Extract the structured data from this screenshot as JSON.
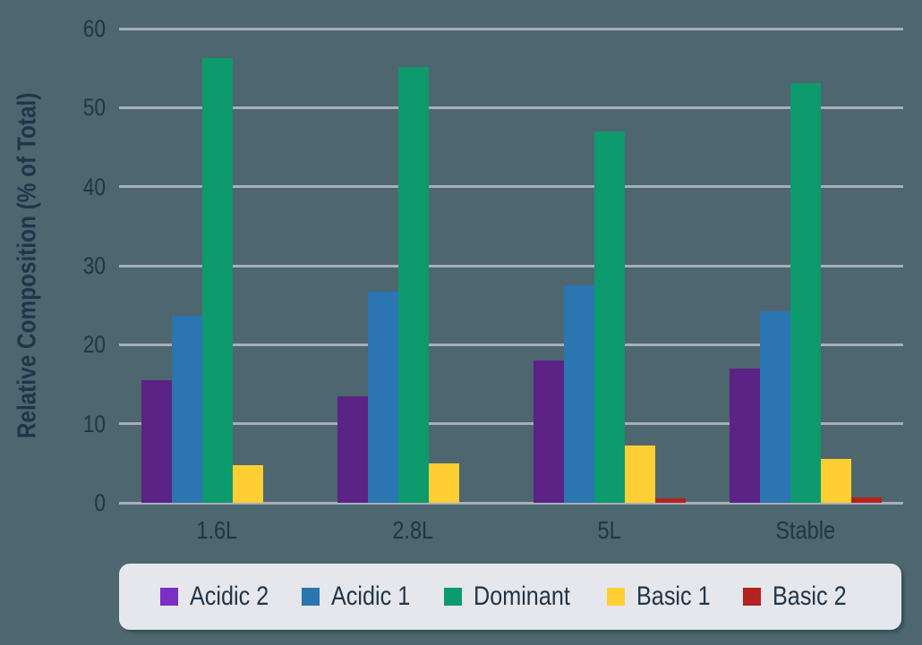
{
  "chart_data": {
    "type": "bar",
    "title": "",
    "categories": [
      "1.6L",
      "2.8L",
      "5L",
      "Stable"
    ],
    "series": [
      {
        "name": "Acidic 2",
        "color": "#5a2385",
        "legend_color": "#7b2fc4",
        "values": [
          15.5,
          13.5,
          18.0,
          17.0
        ]
      },
      {
        "name": "Acidic 1",
        "color": "#2a75b2",
        "legend_color": "#2a75b2",
        "values": [
          23.7,
          26.7,
          27.5,
          24.2
        ]
      },
      {
        "name": "Dominant",
        "color": "#0d9a6d",
        "legend_color": "#0d9a6d",
        "values": [
          56.3,
          55.1,
          47.0,
          53.1
        ]
      },
      {
        "name": "Basic 1",
        "color": "#ffcf33",
        "legend_color": "#ffcf33",
        "values": [
          4.8,
          5.0,
          7.2,
          5.5
        ]
      },
      {
        "name": "Basic 2",
        "color": "#b42121",
        "legend_color": "#b42121",
        "values": [
          0,
          0,
          0.6,
          0.7
        ]
      }
    ],
    "xlabel": "",
    "ylabel": "Relative Composition (% of Total)",
    "ylim": [
      0,
      60
    ],
    "ytick_step": 10,
    "yticks": [
      "0",
      "10",
      "20",
      "30",
      "40",
      "50",
      "60"
    ],
    "grid": true,
    "legend_position": "bottom"
  },
  "colors": {
    "background": "#4d666f",
    "gridline": "#a9aeb6",
    "text": "#21354a",
    "legend_background": "#e5e7ec",
    "legend_text": "#21354a"
  }
}
